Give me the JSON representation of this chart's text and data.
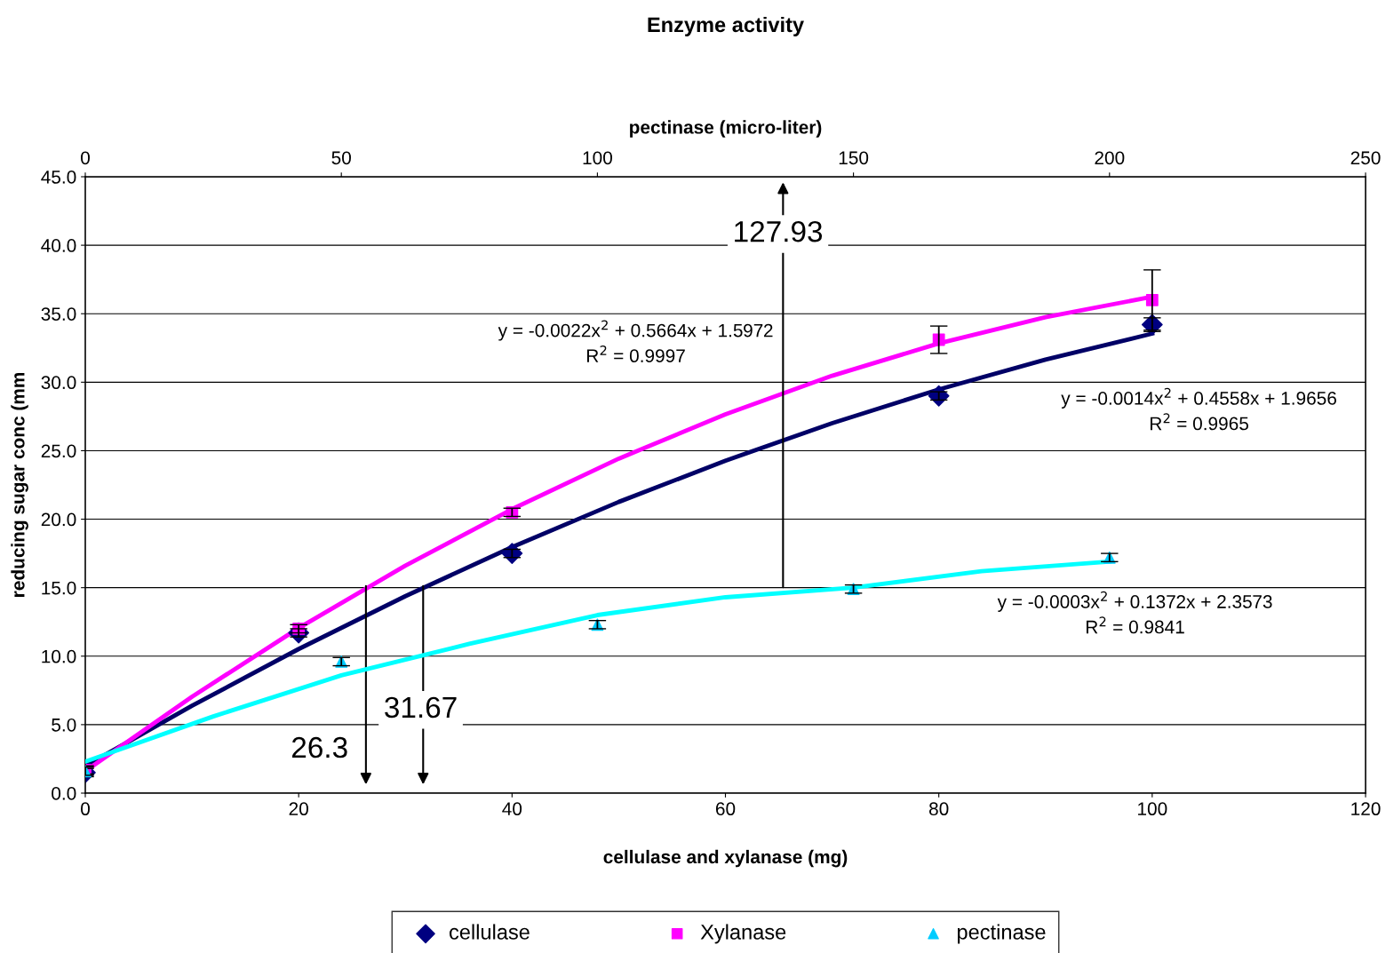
{
  "chart_data": {
    "type": "scatter",
    "title": "Enzyme activity",
    "xlabel": "cellulase and xylanase (mg)",
    "x2label": "pectinase (micro-liter)",
    "ylabel": "reducing sugar conc (mm",
    "xlim": [
      0,
      120
    ],
    "xticks": [
      0,
      20,
      40,
      60,
      80,
      100,
      120
    ],
    "x2lim": [
      0,
      250
    ],
    "x2ticks": [
      0,
      50,
      100,
      150,
      200,
      250
    ],
    "ylim": [
      0,
      45
    ],
    "yticks": [
      {
        "value": 0,
        "label": "0.0"
      },
      {
        "value": 5,
        "label": "5.0"
      },
      {
        "value": 10,
        "label": "10.0"
      },
      {
        "value": 15,
        "label": "15.0"
      },
      {
        "value": 20,
        "label": "20.0"
      },
      {
        "value": 25,
        "label": "25.0"
      },
      {
        "value": 30,
        "label": "30.0"
      },
      {
        "value": 35,
        "label": "35.0"
      },
      {
        "value": 40,
        "label": "40.0"
      },
      {
        "value": 45,
        "label": "45.0"
      }
    ],
    "grid": "y",
    "legend": "bottom",
    "series": [
      {
        "type": "line",
        "color": "#000066",
        "marker": "none",
        "x": [
          0,
          10,
          20,
          30,
          40,
          50,
          60,
          70,
          80,
          90,
          100
        ],
        "values": [
          1.97,
          6.38,
          10.52,
          14.38,
          17.96,
          21.26,
          24.27,
          27.01,
          29.47,
          31.65,
          33.55
        ]
      },
      {
        "type": "line",
        "color": "#ff00ff",
        "marker": "none",
        "x": [
          0,
          10,
          20,
          30,
          40,
          50,
          60,
          70,
          80,
          90,
          100
        ],
        "values": [
          1.6,
          7.04,
          12.05,
          16.61,
          20.73,
          24.42,
          27.66,
          30.47,
          32.83,
          34.75,
          36.24
        ]
      },
      {
        "type": "line",
        "color": "#00ffff",
        "marker": "none",
        "axis": "x2",
        "x": [
          0,
          25,
          50,
          75,
          100,
          125,
          150,
          175,
          200
        ],
        "values": [
          2.3,
          5.6,
          8.6,
          10.9,
          13.0,
          14.3,
          15.0,
          16.2,
          16.9
        ]
      },
      {
        "name": "cellulase",
        "color": "#000080",
        "marker": "diamond",
        "x": [
          0,
          20,
          40,
          80,
          100
        ],
        "values": [
          1.5,
          11.7,
          17.5,
          29.0,
          34.2
        ],
        "errors": [
          0.3,
          0.3,
          0.3,
          0.3,
          0.5
        ]
      },
      {
        "name": "Xylanase",
        "color": "#ff00ff",
        "marker": "square",
        "x": [
          0,
          20,
          40,
          80,
          100
        ],
        "values": [
          1.7,
          12.0,
          20.5,
          33.1,
          36.0
        ],
        "errors": [
          0.3,
          0.3,
          0.3,
          1.0,
          2.2
        ]
      },
      {
        "name": "pectinase",
        "color": "#00ccff",
        "marker": "triangle",
        "axis": "x2",
        "x": [
          0,
          50,
          100,
          150,
          200
        ],
        "values": [
          1.6,
          9.6,
          12.3,
          14.9,
          17.2
        ],
        "errors": [
          0.3,
          0.3,
          0.3,
          0.3,
          0.3
        ]
      }
    ],
    "annotations": [
      "127.93",
      "31.67",
      "26.3",
      "y = -0.0022x$^{2}$ + 0.5664x + 1.5972\nR$^{2}$ = 0.9997",
      "y = -0.0014x$^{2}$ + 0.4558x + 1.9656\nR$^{2}$ = 0.9965",
      "y = -0.0003x$^{2}$ + 0.1372x + 2.3573\nR$^{2}$ = 0.9841"
    ]
  }
}
